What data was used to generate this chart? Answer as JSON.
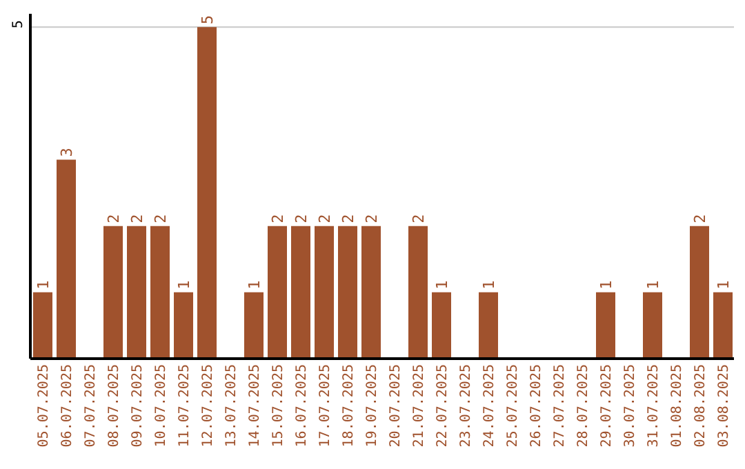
{
  "chart_data": {
    "type": "bar",
    "categories": [
      "05.07.2025",
      "06.07.2025",
      "07.07.2025",
      "08.07.2025",
      "09.07.2025",
      "10.07.2025",
      "11.07.2025",
      "12.07.2025",
      "13.07.2025",
      "14.07.2025",
      "15.07.2025",
      "16.07.2025",
      "17.07.2025",
      "18.07.2025",
      "19.07.2025",
      "20.07.2025",
      "21.07.2025",
      "22.07.2025",
      "23.07.2025",
      "24.07.2025",
      "25.07.2025",
      "26.07.2025",
      "27.07.2025",
      "28.07.2025",
      "29.07.2025",
      "30.07.2025",
      "31.07.2025",
      "01.08.2025",
      "02.08.2025",
      "03.08.2025"
    ],
    "values": [
      1,
      3,
      0,
      2,
      2,
      2,
      1,
      5,
      0,
      1,
      2,
      2,
      2,
      2,
      2,
      0,
      2,
      1,
      0,
      1,
      0,
      0,
      0,
      0,
      1,
      0,
      1,
      0,
      2,
      1
    ],
    "value_labels": [
      "1",
      "3",
      null,
      "2",
      "2",
      "2",
      "1",
      "5",
      null,
      "1",
      "2",
      "2",
      "2",
      "2",
      "2",
      null,
      "2",
      "1",
      null,
      "1",
      null,
      null,
      null,
      null,
      "1",
      null,
      "1",
      null,
      "2",
      "1"
    ],
    "color": "#a0522d",
    "ylim": [
      0,
      5.2
    ],
    "yticks": [
      5
    ],
    "grid": "y"
  }
}
